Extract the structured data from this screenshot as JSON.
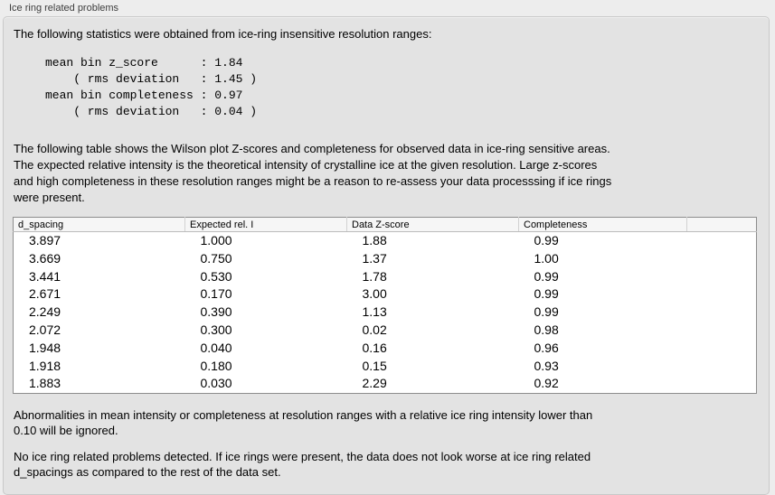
{
  "panel_title": "Ice ring related problems",
  "intro": "The following statistics were obtained from ice-ring insensitive resolution ranges:",
  "stats": {
    "lines": [
      "mean bin z_score      : 1.84",
      "    ( rms deviation   : 1.45 )",
      "mean bin completeness : 0.97",
      "    ( rms deviation   : 0.04 )"
    ]
  },
  "description_lines": [
    "The following table shows the Wilson plot Z-scores and completeness for observed data in ice-ring sensitive areas.",
    "The expected relative intensity is the theoretical intensity of crystalline ice at the given resolution. Large z-scores",
    "and high completeness in these resolution ranges might be a reason to re-assess your data processsing if ice rings",
    "were present."
  ],
  "table": {
    "columns": [
      "d_spacing",
      "Expected rel. I",
      "Data Z-score",
      "Completeness"
    ],
    "rows": [
      [
        "3.897",
        "1.000",
        "1.88",
        "0.99"
      ],
      [
        "3.669",
        "0.750",
        "1.37",
        "1.00"
      ],
      [
        "3.441",
        "0.530",
        "1.78",
        "0.99"
      ],
      [
        "2.671",
        "0.170",
        "3.00",
        "0.99"
      ],
      [
        "2.249",
        "0.390",
        "1.13",
        "0.99"
      ],
      [
        "2.072",
        "0.300",
        "0.02",
        "0.98"
      ],
      [
        "1.948",
        "0.040",
        "0.16",
        "0.96"
      ],
      [
        "1.918",
        "0.180",
        "0.15",
        "0.93"
      ],
      [
        "1.883",
        "0.030",
        "2.29",
        "0.92"
      ]
    ]
  },
  "note_lines": [
    "Abnormalities in mean intensity or completeness at resolution ranges with a relative ice ring intensity lower than",
    "0.10 will be ignored."
  ],
  "conclusion_lines": [
    "No ice ring related problems detected. If ice rings were present, the data does not look worse at ice ring related",
    "d_spacings as compared to the rest of the data set."
  ],
  "colors": {
    "window_bg": "#ededed",
    "groupbox_bg": "#e3e3e3",
    "groupbox_border": "#c9c9c9",
    "table_border": "#8d8d8d",
    "table_header_bg": "#f6f6f6",
    "text": "#000000",
    "label_text": "#3d3d3d"
  }
}
